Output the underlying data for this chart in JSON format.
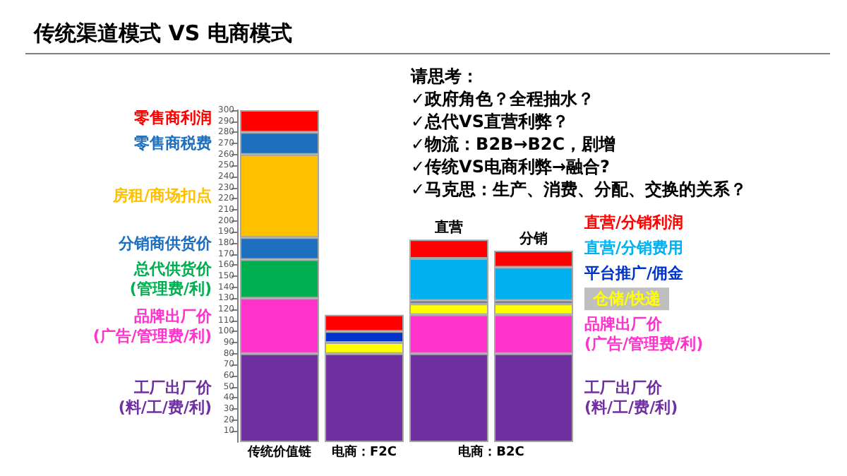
{
  "chart_data": {
    "type": "bar",
    "title": "传统渠道模式 VS 电商模式",
    "stacked": true,
    "categories": [
      "传统价值链",
      "电商：F2C",
      "直营",
      "分销"
    ],
    "ylim": [
      0,
      300
    ],
    "yticks": [
      10,
      20,
      30,
      40,
      50,
      60,
      70,
      80,
      90,
      100,
      110,
      120,
      130,
      140,
      150,
      160,
      170,
      180,
      190,
      200,
      210,
      220,
      230,
      240,
      250,
      260,
      270,
      280,
      290,
      300
    ],
    "grid": false,
    "legend": false,
    "series": [
      {
        "name": "工厂出厂价\n(料/工/费/利)",
        "color": "#7030a0",
        "values": [
          80,
          80,
          80,
          80
        ]
      },
      {
        "name": "品牌出厂价\n(广告/管理费/利)",
        "color": "#ff33cc",
        "values": [
          50,
          null,
          35,
          35
        ]
      },
      {
        "name": "总代供货价\n(管理费/利)",
        "color": "#00b050",
        "values": [
          35,
          null,
          null,
          null
        ]
      },
      {
        "name": "分销商供货价",
        "color": "#1f6fbf",
        "values": [
          20,
          null,
          null,
          null
        ]
      },
      {
        "name": "房租/商场扣点",
        "color": "#ffc000",
        "values": [
          75,
          null,
          null,
          null
        ]
      },
      {
        "name": "零售商税费",
        "color": "#1f6fbf",
        "values": [
          20,
          null,
          null,
          null
        ]
      },
      {
        "name": "零售商利润",
        "color": "#ff0000",
        "values": [
          20,
          null,
          null,
          null
        ]
      },
      {
        "name": "仓储/快递",
        "color": "#ffff00",
        "values": [
          null,
          10,
          10,
          10
        ]
      },
      {
        "name": "平台推广/佣金",
        "color": "#0033cc",
        "values": [
          null,
          10,
          3,
          3
        ]
      },
      {
        "color": "#ff0000",
        "values": [
          null,
          15,
          null,
          null
        ]
      },
      {
        "name": "直营/分销费用",
        "color": "#00b0f0",
        "values": [
          null,
          null,
          38,
          30
        ]
      },
      {
        "name": "直营/分销利润",
        "color": "#ff0000",
        "values": [
          null,
          null,
          17,
          15
        ]
      }
    ],
    "annotations": [
      "请思考：",
      "✓政府角色？全程抽水？",
      "✓总代VS直营利弊？",
      "✓物流：B2B→B2C，剧增",
      "✓传统VS电商利弊→融合?",
      "✓马克思：生产、消费、分配、交换的关系？",
      {
        "text": "电商：B2C",
        "x": "直营",
        "y": 0
      }
    ]
  }
}
